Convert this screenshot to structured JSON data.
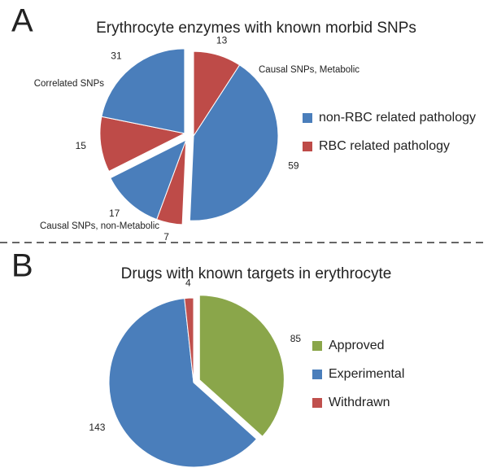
{
  "chart_data": [
    {
      "type": "grouped-pie",
      "panel": "A",
      "title": "Erythrocyte enzymes with known morbid SNPs",
      "categories": [
        "Causal SNPs, Metabolic",
        "Causal SNPs, non-Metabolic",
        "Correlated SNPs"
      ],
      "series": [
        {
          "name": "non-RBC related pathology",
          "color": "#4a7ebb",
          "values": [
            59,
            17,
            31
          ]
        },
        {
          "name": "RBC related pathology",
          "color": "#be4b48",
          "values": [
            13,
            7,
            15
          ]
        }
      ]
    },
    {
      "type": "pie",
      "panel": "B",
      "title": "Drugs with known targets in erythrocyte",
      "categories": [
        "Approved",
        "Experimental",
        "Withdrawn"
      ],
      "values": [
        85,
        143,
        4
      ],
      "colors": [
        "#8aa64a",
        "#4a7ebb",
        "#c0504d"
      ]
    }
  ]
}
